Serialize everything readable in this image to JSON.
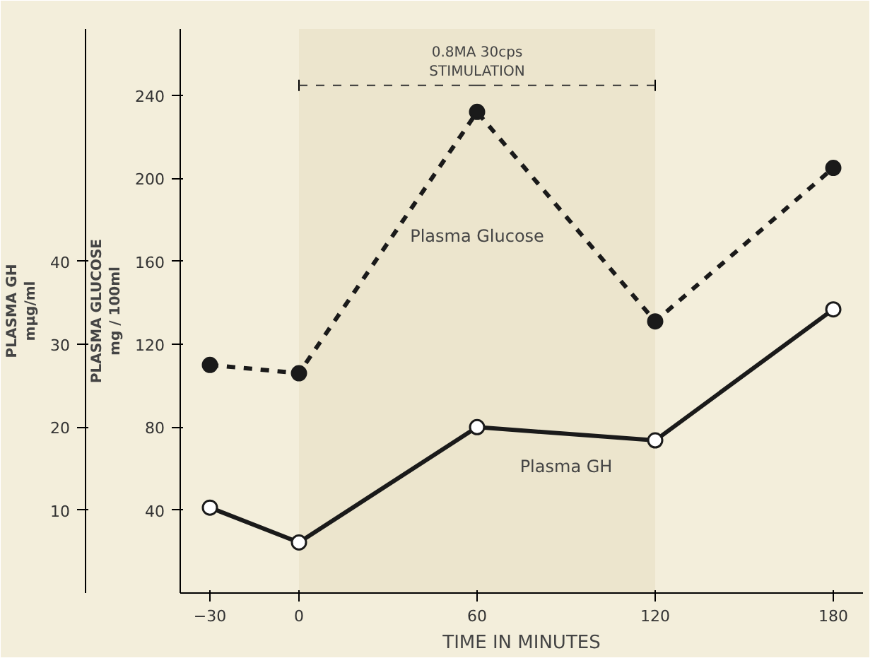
{
  "chart_data": {
    "type": "line",
    "xlabel": "TIME IN MINUTES",
    "ylabel": "PLASMA GLUCOSE\nmg / 100ml",
    "y2label": "PLASMA GH\nmμg/ml",
    "x": [
      -30,
      0,
      60,
      120,
      180
    ],
    "series": [
      {
        "name": "Plasma Glucose",
        "color": "#1a1a1a",
        "values": [
          110,
          106,
          232,
          131,
          205
        ],
        "line_style": "dashed",
        "marker": "circle"
      },
      {
        "name": "Plasma GH",
        "color": "#1a1a1a",
        "values": [
          10.3,
          6.1,
          20,
          18.4,
          34.2
        ],
        "line_style": "solid",
        "marker": "circle",
        "axis": "y2"
      }
    ],
    "xlim": [
      -40,
      190
    ],
    "xticks": [
      -30,
      0,
      60,
      120,
      180
    ],
    "ylim": [
      0,
      272
    ],
    "yticks": [
      40,
      80,
      120,
      160,
      200,
      240
    ],
    "y2lim": [
      0,
      68
    ],
    "y2ticks": [
      10,
      20,
      30,
      40
    ],
    "bands": [
      {
        "axis": "x",
        "from": 0,
        "to": 120,
        "label": "0.8MA 30cps\nSTIMULATION",
        "color": "#e6dcc0"
      }
    ],
    "grid": false
  }
}
